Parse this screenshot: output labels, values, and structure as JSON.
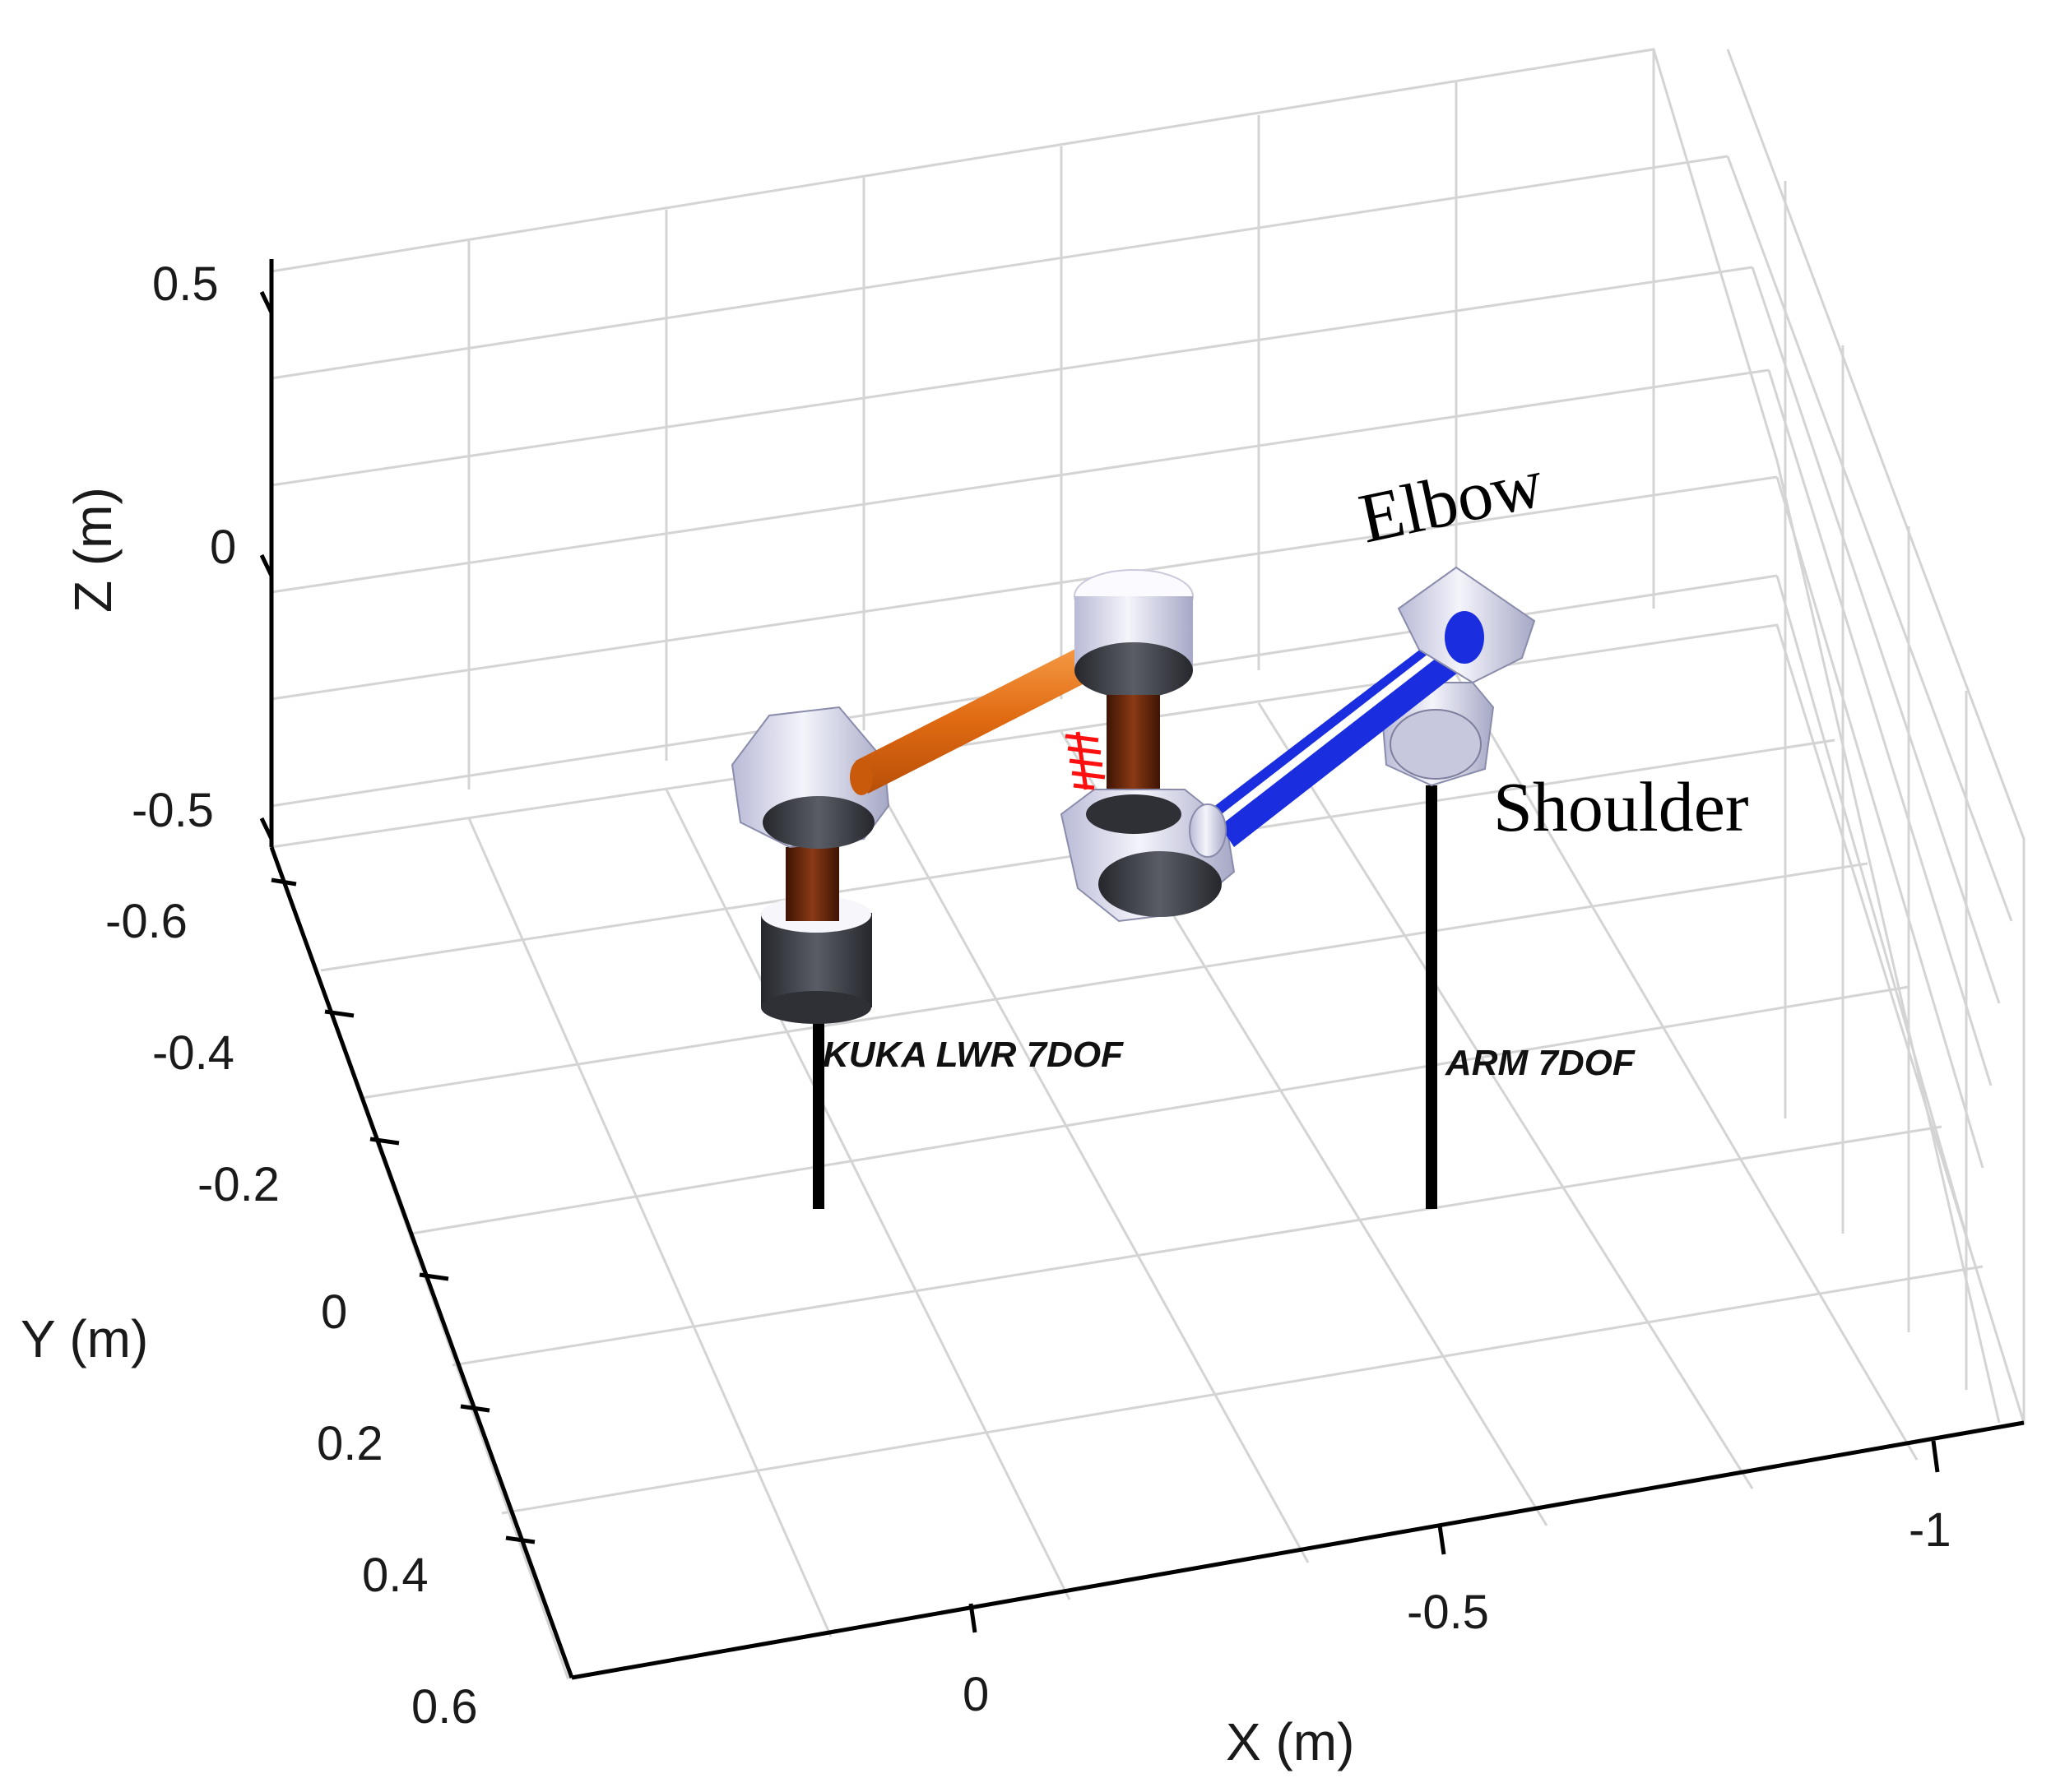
{
  "axes": {
    "x_label": "X (m)",
    "y_label": "Y (m)",
    "z_label": "Z (m)",
    "x_ticks": [
      "0",
      "-0.5",
      "-1"
    ],
    "y_ticks": [
      "-0.6",
      "-0.4",
      "-0.2",
      "0",
      "0.2",
      "0.4",
      "0.6"
    ],
    "z_ticks": [
      "0.5",
      "0",
      "-0.5"
    ]
  },
  "robots": {
    "kuka_label": "KUKA LWR 7DOF",
    "arm_label": "ARM 7DOF"
  },
  "annotations": {
    "elbow": "Elbow",
    "shoulder": "Shoulder"
  },
  "colors": {
    "kuka_link": "#e8731e",
    "arm_link": "#1428d8",
    "joint_body": "#dcdcf0",
    "joint_cap": "#3c3f46",
    "inner_link": "#6b2a10",
    "grid": "#d4d4d4"
  }
}
